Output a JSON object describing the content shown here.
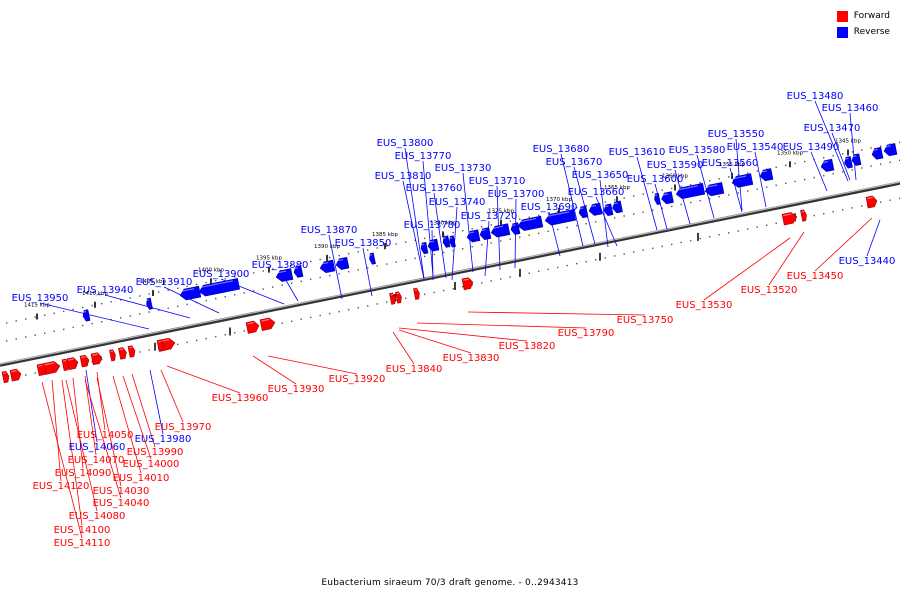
{
  "legend": {
    "forward_label": "Forward",
    "reverse_label": "Reverse",
    "forward_color": "#ff0000",
    "reverse_color": "#0000ff"
  },
  "caption": "Eubacterium siraeum 70/3 draft genome. - 0..2943413",
  "ticks": [
    "1345 kbp",
    "1350 kbp",
    "1355 kbp",
    "1360 kbp",
    "1365 kbp",
    "1370 kbp",
    "1375 kbp",
    "1380 kbp",
    "1385 kbp",
    "1390 kbp",
    "1395 kbp",
    "1400 kbp",
    "1405 kbp",
    "1410 kbp",
    "1415 kbp"
  ],
  "genes": {
    "reverse": [
      "EUS_13480",
      "EUS_13460",
      "EUS_13470",
      "EUS_13490",
      "EUS_13550",
      "EUS_13540",
      "EUS_13560",
      "EUS_13580",
      "EUS_13590",
      "EUS_13610",
      "EUS_13600",
      "EUS_13680",
      "EUS_13670",
      "EUS_13650",
      "EUS_13660",
      "EUS_13690",
      "EUS_13800",
      "EUS_13770",
      "EUS_13730",
      "EUS_13810",
      "EUS_13710",
      "EUS_13760",
      "EUS_13700",
      "EUS_13740",
      "EUS_13720",
      "EUS_13780",
      "EUS_13870",
      "EUS_13850",
      "EUS_13880",
      "EUS_13900",
      "EUS_13910",
      "EUS_13940",
      "EUS_13950",
      "EUS_13440",
      "EUS_13980",
      "EUS_14060"
    ],
    "forward": [
      "EUS_13450",
      "EUS_13520",
      "EUS_13530",
      "EUS_13750",
      "EUS_13790",
      "EUS_13820",
      "EUS_13830",
      "EUS_13840",
      "EUS_13920",
      "EUS_13930",
      "EUS_13960",
      "EUS_13970",
      "EUS_14050",
      "EUS_13990",
      "EUS_14070",
      "EUS_14000",
      "EUS_14090",
      "EUS_14010",
      "EUS_14120",
      "EUS_14030",
      "EUS_14040",
      "EUS_14080",
      "EUS_14100",
      "EUS_14110"
    ]
  }
}
